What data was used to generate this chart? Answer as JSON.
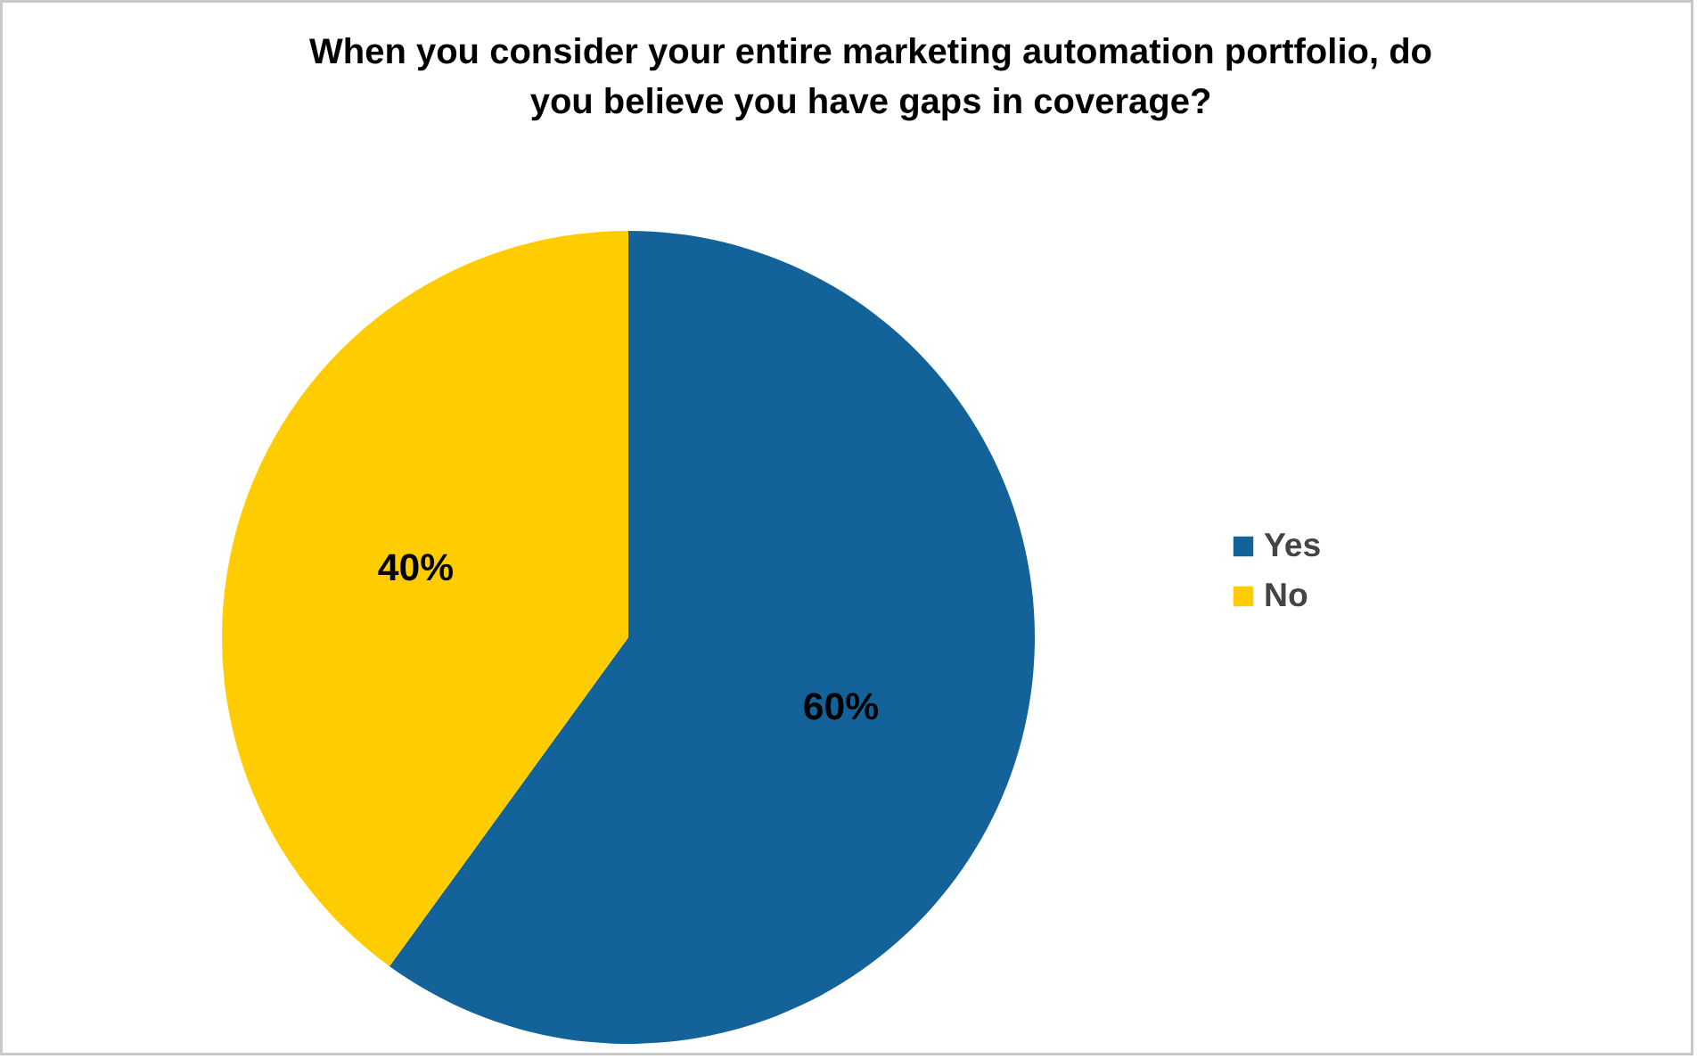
{
  "chart_data": {
    "type": "pie",
    "title": "When you consider your entire marketing automation portfolio, do you believe you have gaps in coverage?",
    "categories": [
      "Yes",
      "No"
    ],
    "values": [
      60,
      40
    ],
    "colors": [
      "#136299",
      "#ffcc00"
    ],
    "value_labels": [
      "60%",
      "40%"
    ],
    "legend": "right"
  }
}
